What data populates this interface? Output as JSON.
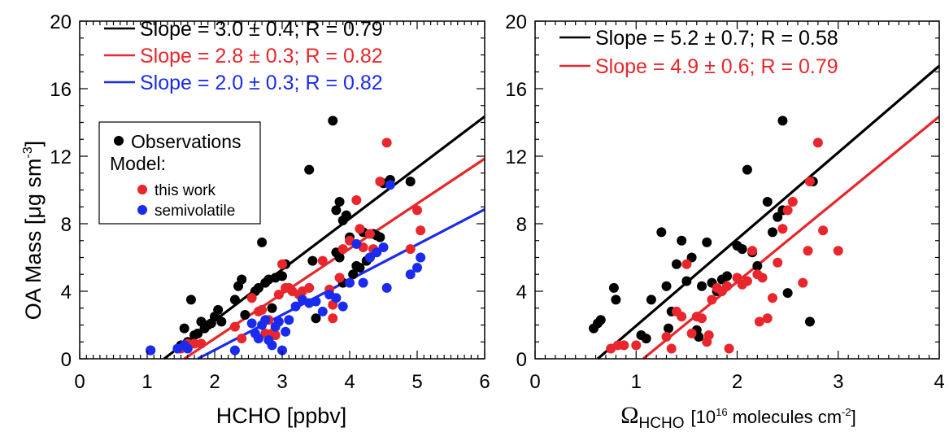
{
  "chart_data": [
    {
      "type": "scatter",
      "ylabel_main": "OA Mass [",
      "ylabel_unit": "μg sm",
      "ylabel_exp": "-3",
      "ylabel_end": "]",
      "xlabel": "HCHO [ppbv]",
      "xlim": [
        0,
        6
      ],
      "ylim": [
        0,
        20
      ],
      "x_ticks": [
        0,
        1,
        2,
        3,
        4,
        5,
        6
      ],
      "y_ticks": [
        0,
        4,
        8,
        12,
        16,
        20
      ],
      "fit_labels": [
        {
          "text": "Slope = 3.0 ± 0.4; R = 0.79",
          "color": "#000000"
        },
        {
          "text": "Slope = 2.8 ± 0.3; R = 0.82",
          "color": "#e8262b"
        },
        {
          "text": "Slope = 2.0 ± 0.3; R = 0.82",
          "color": "#1a2bf0"
        }
      ],
      "legend": {
        "position": "middle-left",
        "observations": "Observations",
        "model": "Model:",
        "this_work": "this work",
        "semivolatile": "semivolatile"
      },
      "fits": [
        {
          "color": "#000000",
          "x": [
            1.25,
            6.0
          ],
          "y": [
            0.0,
            14.35
          ]
        },
        {
          "color": "#e8262b",
          "x": [
            1.55,
            6.0
          ],
          "y": [
            0.0,
            11.85
          ]
        },
        {
          "color": "#1a2bf0",
          "x": [
            1.75,
            6.0
          ],
          "y": [
            0.0,
            8.85
          ]
        }
      ],
      "series": [
        {
          "name": "Observations",
          "color": "#000000",
          "points": [
            [
              1.05,
              0.5
            ],
            [
              1.5,
              0.8
            ],
            [
              1.55,
              1.8
            ],
            [
              1.6,
              1.0
            ],
            [
              1.65,
              3.5
            ],
            [
              1.7,
              1.4
            ],
            [
              1.75,
              1.5
            ],
            [
              1.8,
              2.2
            ],
            [
              1.85,
              1.8
            ],
            [
              1.9,
              2.0
            ],
            [
              1.95,
              2.1
            ],
            [
              2.0,
              2.5
            ],
            [
              2.05,
              2.9
            ],
            [
              2.1,
              2.2
            ],
            [
              2.3,
              3.5
            ],
            [
              2.35,
              4.3
            ],
            [
              2.4,
              4.7
            ],
            [
              2.45,
              2.6
            ],
            [
              2.6,
              4.0
            ],
            [
              2.65,
              4.2
            ],
            [
              2.7,
              6.9
            ],
            [
              2.75,
              4.5
            ],
            [
              2.8,
              4.7
            ],
            [
              2.85,
              3.0
            ],
            [
              2.9,
              4.8
            ],
            [
              3.0,
              4.9
            ],
            [
              3.05,
              5.6
            ],
            [
              3.4,
              11.2
            ],
            [
              3.45,
              5.8
            ],
            [
              3.5,
              2.4
            ],
            [
              3.75,
              14.1
            ],
            [
              3.8,
              8.8
            ],
            [
              3.85,
              9.3
            ],
            [
              3.8,
              6.3
            ],
            [
              3.85,
              6.0
            ],
            [
              3.9,
              4.5
            ],
            [
              3.9,
              8.2
            ],
            [
              3.95,
              8.5
            ],
            [
              4.0,
              7.2
            ],
            [
              4.05,
              5.0
            ],
            [
              4.1,
              5.5
            ],
            [
              4.15,
              5.4
            ],
            [
              4.2,
              7.5
            ],
            [
              4.25,
              5.8
            ],
            [
              4.3,
              6.0
            ],
            [
              4.35,
              7.4
            ],
            [
              4.4,
              7.3
            ],
            [
              4.45,
              7.2
            ],
            [
              4.5,
              10.4
            ],
            [
              4.6,
              10.6
            ],
            [
              4.9,
              10.5
            ]
          ]
        },
        {
          "name": "this work",
          "color": "#e8262b",
          "points": [
            [
              1.05,
              0.5
            ],
            [
              1.5,
              0.6
            ],
            [
              1.6,
              0.9
            ],
            [
              1.7,
              0.9
            ],
            [
              1.8,
              0.9
            ],
            [
              2.3,
              1.9
            ],
            [
              2.4,
              1.2
            ],
            [
              2.55,
              3.6
            ],
            [
              2.65,
              2.8
            ],
            [
              2.7,
              2.9
            ],
            [
              2.75,
              1.5
            ],
            [
              2.8,
              2.3
            ],
            [
              2.85,
              1.5
            ],
            [
              2.9,
              1.4
            ],
            [
              2.95,
              3.8
            ],
            [
              3.0,
              5.6
            ],
            [
              3.05,
              4.2
            ],
            [
              3.1,
              4.2
            ],
            [
              3.15,
              4.0
            ],
            [
              3.25,
              3.8
            ],
            [
              3.3,
              4.0
            ],
            [
              3.4,
              4.2
            ],
            [
              3.6,
              5.8
            ],
            [
              3.7,
              4.1
            ],
            [
              3.75,
              3.2
            ],
            [
              3.75,
              2.4
            ],
            [
              3.85,
              4.8
            ],
            [
              3.9,
              6.5
            ],
            [
              4.0,
              7.0
            ],
            [
              4.1,
              9.4
            ],
            [
              4.15,
              7.7
            ],
            [
              4.2,
              6.6
            ],
            [
              4.3,
              7.4
            ],
            [
              4.35,
              6.5
            ],
            [
              4.45,
              10.5
            ],
            [
              4.55,
              12.8
            ],
            [
              4.9,
              6.5
            ],
            [
              5.0,
              8.8
            ],
            [
              5.05,
              7.6
            ]
          ]
        },
        {
          "name": "semivolatile",
          "color": "#1a2bf0",
          "points": [
            [
              1.05,
              0.5
            ],
            [
              1.45,
              0.6
            ],
            [
              1.55,
              0.8
            ],
            [
              1.6,
              0.6
            ],
            [
              2.3,
              0.5
            ],
            [
              2.55,
              2.1
            ],
            [
              2.6,
              1.5
            ],
            [
              2.65,
              1.2
            ],
            [
              2.7,
              2.0
            ],
            [
              2.75,
              2.3
            ],
            [
              2.8,
              1.1
            ],
            [
              2.85,
              0.8
            ],
            [
              2.9,
              1.9
            ],
            [
              2.95,
              2.2
            ],
            [
              3.0,
              0.5
            ],
            [
              3.05,
              1.6
            ],
            [
              3.1,
              2.3
            ],
            [
              3.2,
              3.1
            ],
            [
              3.3,
              3.5
            ],
            [
              3.4,
              3.3
            ],
            [
              3.5,
              3.4
            ],
            [
              3.6,
              2.8
            ],
            [
              3.7,
              3.8
            ],
            [
              3.8,
              3.6
            ],
            [
              3.9,
              3.1
            ],
            [
              4.0,
              4.5
            ],
            [
              4.1,
              6.8
            ],
            [
              4.2,
              4.5
            ],
            [
              4.3,
              6.0
            ],
            [
              4.4,
              6.3
            ],
            [
              4.5,
              6.6
            ],
            [
              4.55,
              4.2
            ],
            [
              4.6,
              10.3
            ],
            [
              4.9,
              5.0
            ],
            [
              5.0,
              5.4
            ],
            [
              5.05,
              6.0
            ]
          ]
        }
      ]
    },
    {
      "type": "scatter",
      "xlabel_symbol": "Ω",
      "xlabel_sub": "HCHO",
      "xlabel_rest": "[10",
      "xlabel_exp": "16",
      "xlabel_rest2": "molecules cm",
      "xlabel_exp2": "-2",
      "xlabel_end": "]",
      "xlim": [
        0,
        4
      ],
      "ylim": [
        0,
        20
      ],
      "x_ticks": [
        0,
        1,
        2,
        3,
        4
      ],
      "y_ticks": [
        0,
        4,
        8,
        12,
        16,
        20
      ],
      "fit_labels": [
        {
          "text": "Slope = 5.2 ± 0.7; R = 0.58",
          "color": "#000000"
        },
        {
          "text": "Slope = 4.9 ± 0.6; R = 0.79",
          "color": "#e8262b"
        }
      ],
      "fits": [
        {
          "color": "#000000",
          "x": [
            0.62,
            4.0
          ],
          "y": [
            0.0,
            17.35
          ]
        },
        {
          "color": "#e8262b",
          "x": [
            1.07,
            4.0
          ],
          "y": [
            0.0,
            14.35
          ]
        }
      ],
      "series": [
        {
          "name": "Observations",
          "color": "#000000",
          "points": [
            [
              0.58,
              1.8
            ],
            [
              0.62,
              2.1
            ],
            [
              0.65,
              2.3
            ],
            [
              0.78,
              4.2
            ],
            [
              0.8,
              3.5
            ],
            [
              1.05,
              1.4
            ],
            [
              1.1,
              1.2
            ],
            [
              1.15,
              3.5
            ],
            [
              1.25,
              7.5
            ],
            [
              1.3,
              4.3
            ],
            [
              1.32,
              1.8
            ],
            [
              1.35,
              2.8
            ],
            [
              1.4,
              5.6
            ],
            [
              1.45,
              7.0
            ],
            [
              1.5,
              4.6
            ],
            [
              1.55,
              6.0
            ],
            [
              1.6,
              1.7
            ],
            [
              1.62,
              1.3
            ],
            [
              1.65,
              4.3
            ],
            [
              1.7,
              6.9
            ],
            [
              1.75,
              4.5
            ],
            [
              1.8,
              4.0
            ],
            [
              1.85,
              4.7
            ],
            [
              1.9,
              4.9
            ],
            [
              2.0,
              6.7
            ],
            [
              2.05,
              6.5
            ],
            [
              2.1,
              11.2
            ],
            [
              2.15,
              6.3
            ],
            [
              2.2,
              5.5
            ],
            [
              2.3,
              9.3
            ],
            [
              2.35,
              7.5
            ],
            [
              2.4,
              8.4
            ],
            [
              2.45,
              8.8
            ],
            [
              2.5,
              3.9
            ],
            [
              2.72,
              2.2
            ],
            [
              2.75,
              10.5
            ],
            [
              2.45,
              14.1
            ]
          ]
        },
        {
          "name": "this work",
          "color": "#e8262b",
          "points": [
            [
              0.75,
              0.6
            ],
            [
              0.82,
              0.8
            ],
            [
              0.88,
              0.8
            ],
            [
              1.0,
              0.8
            ],
            [
              1.3,
              1.3
            ],
            [
              1.35,
              0.6
            ],
            [
              1.4,
              2.8
            ],
            [
              1.45,
              2.5
            ],
            [
              1.5,
              5.6
            ],
            [
              1.55,
              1.5
            ],
            [
              1.6,
              2.5
            ],
            [
              1.65,
              2.4
            ],
            [
              1.7,
              1.0
            ],
            [
              1.72,
              1.4
            ],
            [
              1.75,
              3.5
            ],
            [
              1.8,
              4.2
            ],
            [
              1.85,
              4.0
            ],
            [
              1.9,
              4.3
            ],
            [
              1.92,
              0.6
            ],
            [
              2.0,
              4.8
            ],
            [
              2.05,
              4.4
            ],
            [
              2.1,
              4.6
            ],
            [
              2.15,
              6.4
            ],
            [
              2.2,
              5.0
            ],
            [
              2.22,
              2.2
            ],
            [
              2.25,
              4.8
            ],
            [
              2.3,
              2.4
            ],
            [
              2.35,
              3.6
            ],
            [
              2.4,
              5.7
            ],
            [
              2.45,
              7.7
            ],
            [
              2.5,
              8.8
            ],
            [
              2.55,
              9.3
            ],
            [
              2.65,
              4.5
            ],
            [
              2.7,
              6.4
            ],
            [
              2.72,
              10.5
            ],
            [
              2.8,
              12.8
            ],
            [
              2.85,
              7.6
            ],
            [
              3.0,
              6.4
            ]
          ]
        }
      ]
    }
  ]
}
